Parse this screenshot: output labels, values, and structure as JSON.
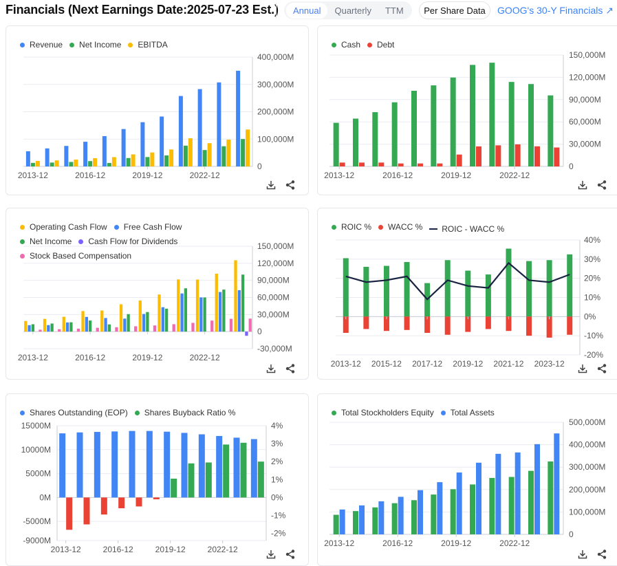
{
  "header": {
    "title": "Financials (Next Earnings Date:2025-07-23 Est.)",
    "periods": [
      "Annual",
      "Quarterly",
      "TTM"
    ],
    "active_period": "Annual",
    "per_share": "Per Share Data",
    "link": "GOOG's 30-Y Financials",
    "link_icon": "arrow-icon"
  },
  "colors": {
    "blue": "#4285f4",
    "green": "#34a853",
    "yellow": "#fbbc04",
    "red": "#ea4335",
    "purple": "#7b61ff",
    "pink": "#f06cb0",
    "line": "#1a2340",
    "accent": "#3b82f6"
  },
  "footer_icons": [
    "download-icon",
    "share-icon"
  ],
  "chart_data": [
    {
      "type": "bar",
      "categories": [
        "2013-12",
        "2014-12",
        "2015-12",
        "2016-12",
        "2017-12",
        "2018-12",
        "2019-12",
        "2020-12",
        "2021-12",
        "2022-12",
        "2023-12",
        "2024-12"
      ],
      "xticks": [
        "2013-12",
        "2016-12",
        "2019-12",
        "2022-12"
      ],
      "ylim": [
        0,
        400000
      ],
      "yticks": [
        {
          "v": 400000,
          "label": "400,000M"
        },
        {
          "v": 300000,
          "label": "300,000M"
        },
        {
          "v": 200000,
          "label": "200,000M"
        },
        {
          "v": 100000,
          "label": "100,000M"
        },
        {
          "v": 0,
          "label": "0"
        }
      ],
      "legend": "top-left",
      "grid": true,
      "series": [
        {
          "name": "Revenue",
          "color": "#4285f4",
          "values": [
            55519,
            66001,
            74989,
            90272,
            110855,
            136819,
            161857,
            182527,
            257637,
            282836,
            307394,
            350018
          ]
        },
        {
          "name": "Net Income",
          "color": "#34a853",
          "values": [
            12920,
            14136,
            16348,
            19478,
            12662,
            30736,
            34343,
            40269,
            76033,
            59972,
            73795,
            100118
          ]
        },
        {
          "name": "EBITDA",
          "color": "#fbbc04",
          "values": [
            20000,
            22000,
            25000,
            30000,
            34000,
            44000,
            51000,
            62000,
            103000,
            85000,
            98000,
            135000
          ]
        }
      ]
    },
    {
      "type": "bar",
      "categories": [
        "2013-12",
        "2014-12",
        "2015-12",
        "2016-12",
        "2017-12",
        "2018-12",
        "2019-12",
        "2020-12",
        "2021-12",
        "2022-12",
        "2023-12",
        "2024-12"
      ],
      "xticks": [
        "2013-12",
        "2016-12",
        "2019-12",
        "2022-12"
      ],
      "ylim": [
        0,
        150000
      ],
      "yticks": [
        {
          "v": 150000,
          "label": "150,000M"
        },
        {
          "v": 120000,
          "label": "120,000M"
        },
        {
          "v": 90000,
          "label": "90,000M"
        },
        {
          "v": 60000,
          "label": "60,000M"
        },
        {
          "v": 30000,
          "label": "30,000M"
        },
        {
          "v": 0,
          "label": "0"
        }
      ],
      "legend": "top-left",
      "grid": true,
      "series": [
        {
          "name": "Cash",
          "color": "#34a853",
          "values": [
            58717,
            64395,
            73066,
            86333,
            101871,
            109140,
            119675,
            136694,
            139649,
            113762,
            110916,
            95657
          ]
        },
        {
          "name": "Debt",
          "color": "#ea4335",
          "values": [
            5200,
            5200,
            5200,
            4000,
            4000,
            4000,
            16000,
            27000,
            28400,
            29700,
            27100,
            25500
          ]
        }
      ]
    },
    {
      "type": "bar",
      "categories": [
        "2013-12",
        "2014-12",
        "2015-12",
        "2016-12",
        "2017-12",
        "2018-12",
        "2019-12",
        "2020-12",
        "2021-12",
        "2022-12",
        "2023-12",
        "2024-12"
      ],
      "xticks": [
        "2013-12",
        "2016-12",
        "2019-12",
        "2022-12"
      ],
      "ylim": [
        -30000,
        150000
      ],
      "yticks": [
        {
          "v": 150000,
          "label": "150,000M"
        },
        {
          "v": 120000,
          "label": "120,000M"
        },
        {
          "v": 90000,
          "label": "90,000M"
        },
        {
          "v": 60000,
          "label": "60,000M"
        },
        {
          "v": 30000,
          "label": "30,000M"
        },
        {
          "v": 0,
          "label": "0"
        },
        {
          "v": -30000,
          "label": "-30,000M"
        }
      ],
      "legend": "top-left",
      "grid": true,
      "series": [
        {
          "name": "Operating Cash Flow",
          "color": "#fbbc04",
          "values": [
            18659,
            22376,
            26024,
            36036,
            37091,
            48031,
            54520,
            65124,
            91652,
            91495,
            101746,
            125299
          ]
        },
        {
          "name": "Free Cash Flow",
          "color": "#4285f4",
          "values": [
            11300,
            11400,
            16100,
            25800,
            23900,
            22800,
            30972,
            42843,
            67012,
            60010,
            69495,
            72764
          ]
        },
        {
          "name": "Net Income",
          "color": "#34a853",
          "values": [
            12920,
            14136,
            16348,
            19478,
            12662,
            30736,
            34343,
            40269,
            76033,
            59972,
            73795,
            100118
          ]
        },
        {
          "name": "Cash Flow for Dividends",
          "color": "#7b61ff",
          "values": [
            0,
            0,
            0,
            0,
            0,
            0,
            0,
            0,
            0,
            0,
            0,
            -7363
          ]
        },
        {
          "name": "Stock Based Compensation",
          "color": "#f06cb0",
          "values": [
            3343,
            4175,
            5203,
            6703,
            7679,
            9353,
            10794,
            12991,
            15376,
            19362,
            22460,
            22785
          ]
        }
      ]
    },
    {
      "type": "bar+line",
      "categories": [
        "2013-12",
        "2014-12",
        "2015-12",
        "2016-12",
        "2017-12",
        "2018-12",
        "2019-12",
        "2020-12",
        "2021-12",
        "2022-12",
        "2023-12",
        "2024-12"
      ],
      "xticks": [
        "2013-12",
        "2015-12",
        "2017-12",
        "2019-12",
        "2021-12",
        "2023-12"
      ],
      "ylim": [
        -20,
        40
      ],
      "yticks": [
        {
          "v": 40,
          "label": "40%"
        },
        {
          "v": 30,
          "label": "30%"
        },
        {
          "v": 20,
          "label": "20%"
        },
        {
          "v": 10,
          "label": "10%"
        },
        {
          "v": 0,
          "label": "0%"
        },
        {
          "v": -10,
          "label": "-10%"
        },
        {
          "v": -20,
          "label": "-20%"
        }
      ],
      "legend": "top-left",
      "grid": true,
      "series": [
        {
          "name": "ROIC %",
          "color": "#34a853",
          "type": "bar",
          "values": [
            30.5,
            26,
            26.5,
            28.5,
            17.5,
            29.5,
            24,
            22,
            35.5,
            29,
            29.5,
            32.5
          ]
        },
        {
          "name": "WACC %",
          "color": "#ea4335",
          "type": "bar",
          "values": [
            -8.5,
            -6.5,
            -7.5,
            -7,
            -8.5,
            -9.5,
            -8,
            -6.5,
            -7.5,
            -10,
            -11,
            -9.5
          ]
        },
        {
          "name": "ROIC - WACC %",
          "color": "#1a2340",
          "type": "line",
          "values": [
            21,
            18,
            19,
            21,
            9,
            19,
            16,
            15,
            28,
            19,
            18,
            22
          ]
        }
      ]
    },
    {
      "type": "bar",
      "categories": [
        "2013-12",
        "2014-12",
        "2015-12",
        "2016-12",
        "2017-12",
        "2018-12",
        "2019-12",
        "2020-12",
        "2021-12",
        "2022-12",
        "2023-12",
        "2024-12"
      ],
      "xticks": [
        "2013-12",
        "2016-12",
        "2019-12",
        "2022-12"
      ],
      "ylim": [
        -9000,
        15000
      ],
      "yticks": [
        {
          "v": 15000,
          "label": "15000M"
        },
        {
          "v": 10000,
          "label": "10000M"
        },
        {
          "v": 5000,
          "label": "5000M"
        },
        {
          "v": 0,
          "label": "0M"
        },
        {
          "v": -5000,
          "label": "-5000M"
        },
        {
          "v": -9000,
          "label": "-9000M"
        }
      ],
      "ylim_right": [
        -2.4,
        4
      ],
      "yticks_right": [
        {
          "v": 4,
          "label": "4%"
        },
        {
          "v": 3,
          "label": "3%"
        },
        {
          "v": 2,
          "label": "2%"
        },
        {
          "v": 1,
          "label": "1%"
        },
        {
          "v": 0,
          "label": "0%"
        },
        {
          "v": -1,
          "label": "-1%"
        },
        {
          "v": -2,
          "label": "-2%"
        }
      ],
      "legend": "top-left",
      "grid": true,
      "series": [
        {
          "name": "Shares Outstanding (EOP)",
          "color": "#4285f4",
          "axis": "left",
          "values": [
            13400,
            13600,
            13700,
            13800,
            13900,
            13900,
            13750,
            13500,
            13200,
            12850,
            12500,
            12200
          ]
        },
        {
          "name": "Shares Buyback Ratio %",
          "color": "#34a853",
          "neg_color": "#ea4335",
          "axis": "right",
          "values": [
            -1.8,
            -1.5,
            -0.95,
            -0.6,
            -0.5,
            -0.1,
            1.05,
            1.9,
            1.95,
            2.95,
            3.05,
            2.0
          ]
        }
      ]
    },
    {
      "type": "bar",
      "categories": [
        "2013-12",
        "2014-12",
        "2015-12",
        "2016-12",
        "2017-12",
        "2018-12",
        "2019-12",
        "2020-12",
        "2021-12",
        "2022-12",
        "2023-12",
        "2024-12"
      ],
      "xticks": [
        "2013-12",
        "2016-12",
        "2019-12",
        "2022-12"
      ],
      "ylim": [
        0,
        500000
      ],
      "yticks": [
        {
          "v": 500000,
          "label": "500,000M"
        },
        {
          "v": 400000,
          "label": "400,000M"
        },
        {
          "v": 300000,
          "label": "300,000M"
        },
        {
          "v": 200000,
          "label": "200,000M"
        },
        {
          "v": 100000,
          "label": "100,000M"
        },
        {
          "v": 0,
          "label": "0"
        }
      ],
      "legend": "top-left",
      "grid": true,
      "series": [
        {
          "name": "Total Stockholders Equity",
          "color": "#34a853",
          "values": [
            87309,
            103860,
            120331,
            139036,
            152502,
            177628,
            201442,
            222544,
            251635,
            256144,
            283379,
            325084
          ]
        },
        {
          "name": "Total Assets",
          "color": "#4285f4",
          "values": [
            110920,
            129187,
            147461,
            167497,
            197295,
            232792,
            275909,
            319616,
            359268,
            365264,
            402392,
            450256
          ]
        }
      ]
    }
  ]
}
